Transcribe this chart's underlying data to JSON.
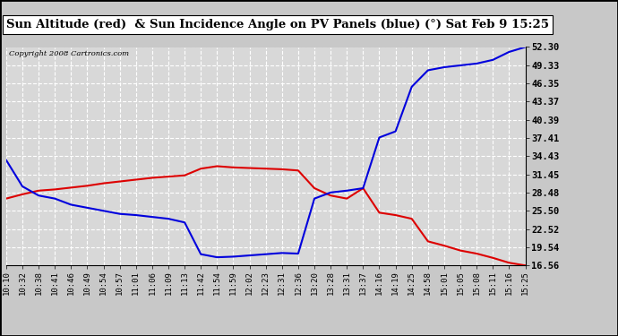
{
  "title": "Sun Altitude (red)  & Sun Incidence Angle on PV Panels (blue) (°) Sat Feb 9 15:25",
  "copyright": "Copyright 2008 Cartronics.com",
  "yticks": [
    16.56,
    19.54,
    22.52,
    25.5,
    28.48,
    31.45,
    34.43,
    37.41,
    40.39,
    43.37,
    46.35,
    49.33,
    52.3
  ],
  "xtick_labels": [
    "10:10",
    "10:32",
    "10:38",
    "10:41",
    "10:46",
    "10:49",
    "10:54",
    "10:57",
    "11:01",
    "11:06",
    "11:09",
    "11:13",
    "11:42",
    "11:54",
    "11:59",
    "12:02",
    "12:23",
    "12:31",
    "12:36",
    "13:20",
    "13:28",
    "13:31",
    "13:37",
    "14:16",
    "14:19",
    "14:25",
    "14:58",
    "15:01",
    "15:05",
    "15:08",
    "15:11",
    "15:16",
    "15:25"
  ],
  "ymin": 16.56,
  "ymax": 52.3,
  "bg_color": "#c8c8c8",
  "plot_bg_color": "#d8d8d8",
  "grid_color": "#ffffff",
  "title_bg": "#ffffff",
  "red_color": "#dd0000",
  "blue_color": "#0000dd",
  "red_data_y": [
    27.5,
    28.2,
    28.8,
    29.0,
    29.3,
    29.6,
    30.0,
    30.3,
    30.6,
    30.9,
    31.1,
    31.3,
    32.4,
    32.8,
    32.6,
    32.5,
    32.4,
    32.3,
    32.1,
    29.2,
    28.0,
    27.5,
    29.2,
    25.2,
    24.8,
    24.2,
    20.5,
    19.8,
    19.0,
    18.5,
    17.8,
    17.0,
    16.56
  ],
  "blue_data_y": [
    33.8,
    29.5,
    28.0,
    27.5,
    26.5,
    26.0,
    25.5,
    25.0,
    24.8,
    24.5,
    24.2,
    23.6,
    18.4,
    17.9,
    18.0,
    18.2,
    18.4,
    18.6,
    18.5,
    27.5,
    28.5,
    28.8,
    29.2,
    37.5,
    38.5,
    45.8,
    48.5,
    49.0,
    49.3,
    49.6,
    50.2,
    51.5,
    52.3
  ],
  "title_fontsize": 9.5,
  "tick_fontsize": 6.5,
  "ytick_fontsize": 7.5,
  "copyright_fontsize": 6.0,
  "linewidth": 1.5
}
